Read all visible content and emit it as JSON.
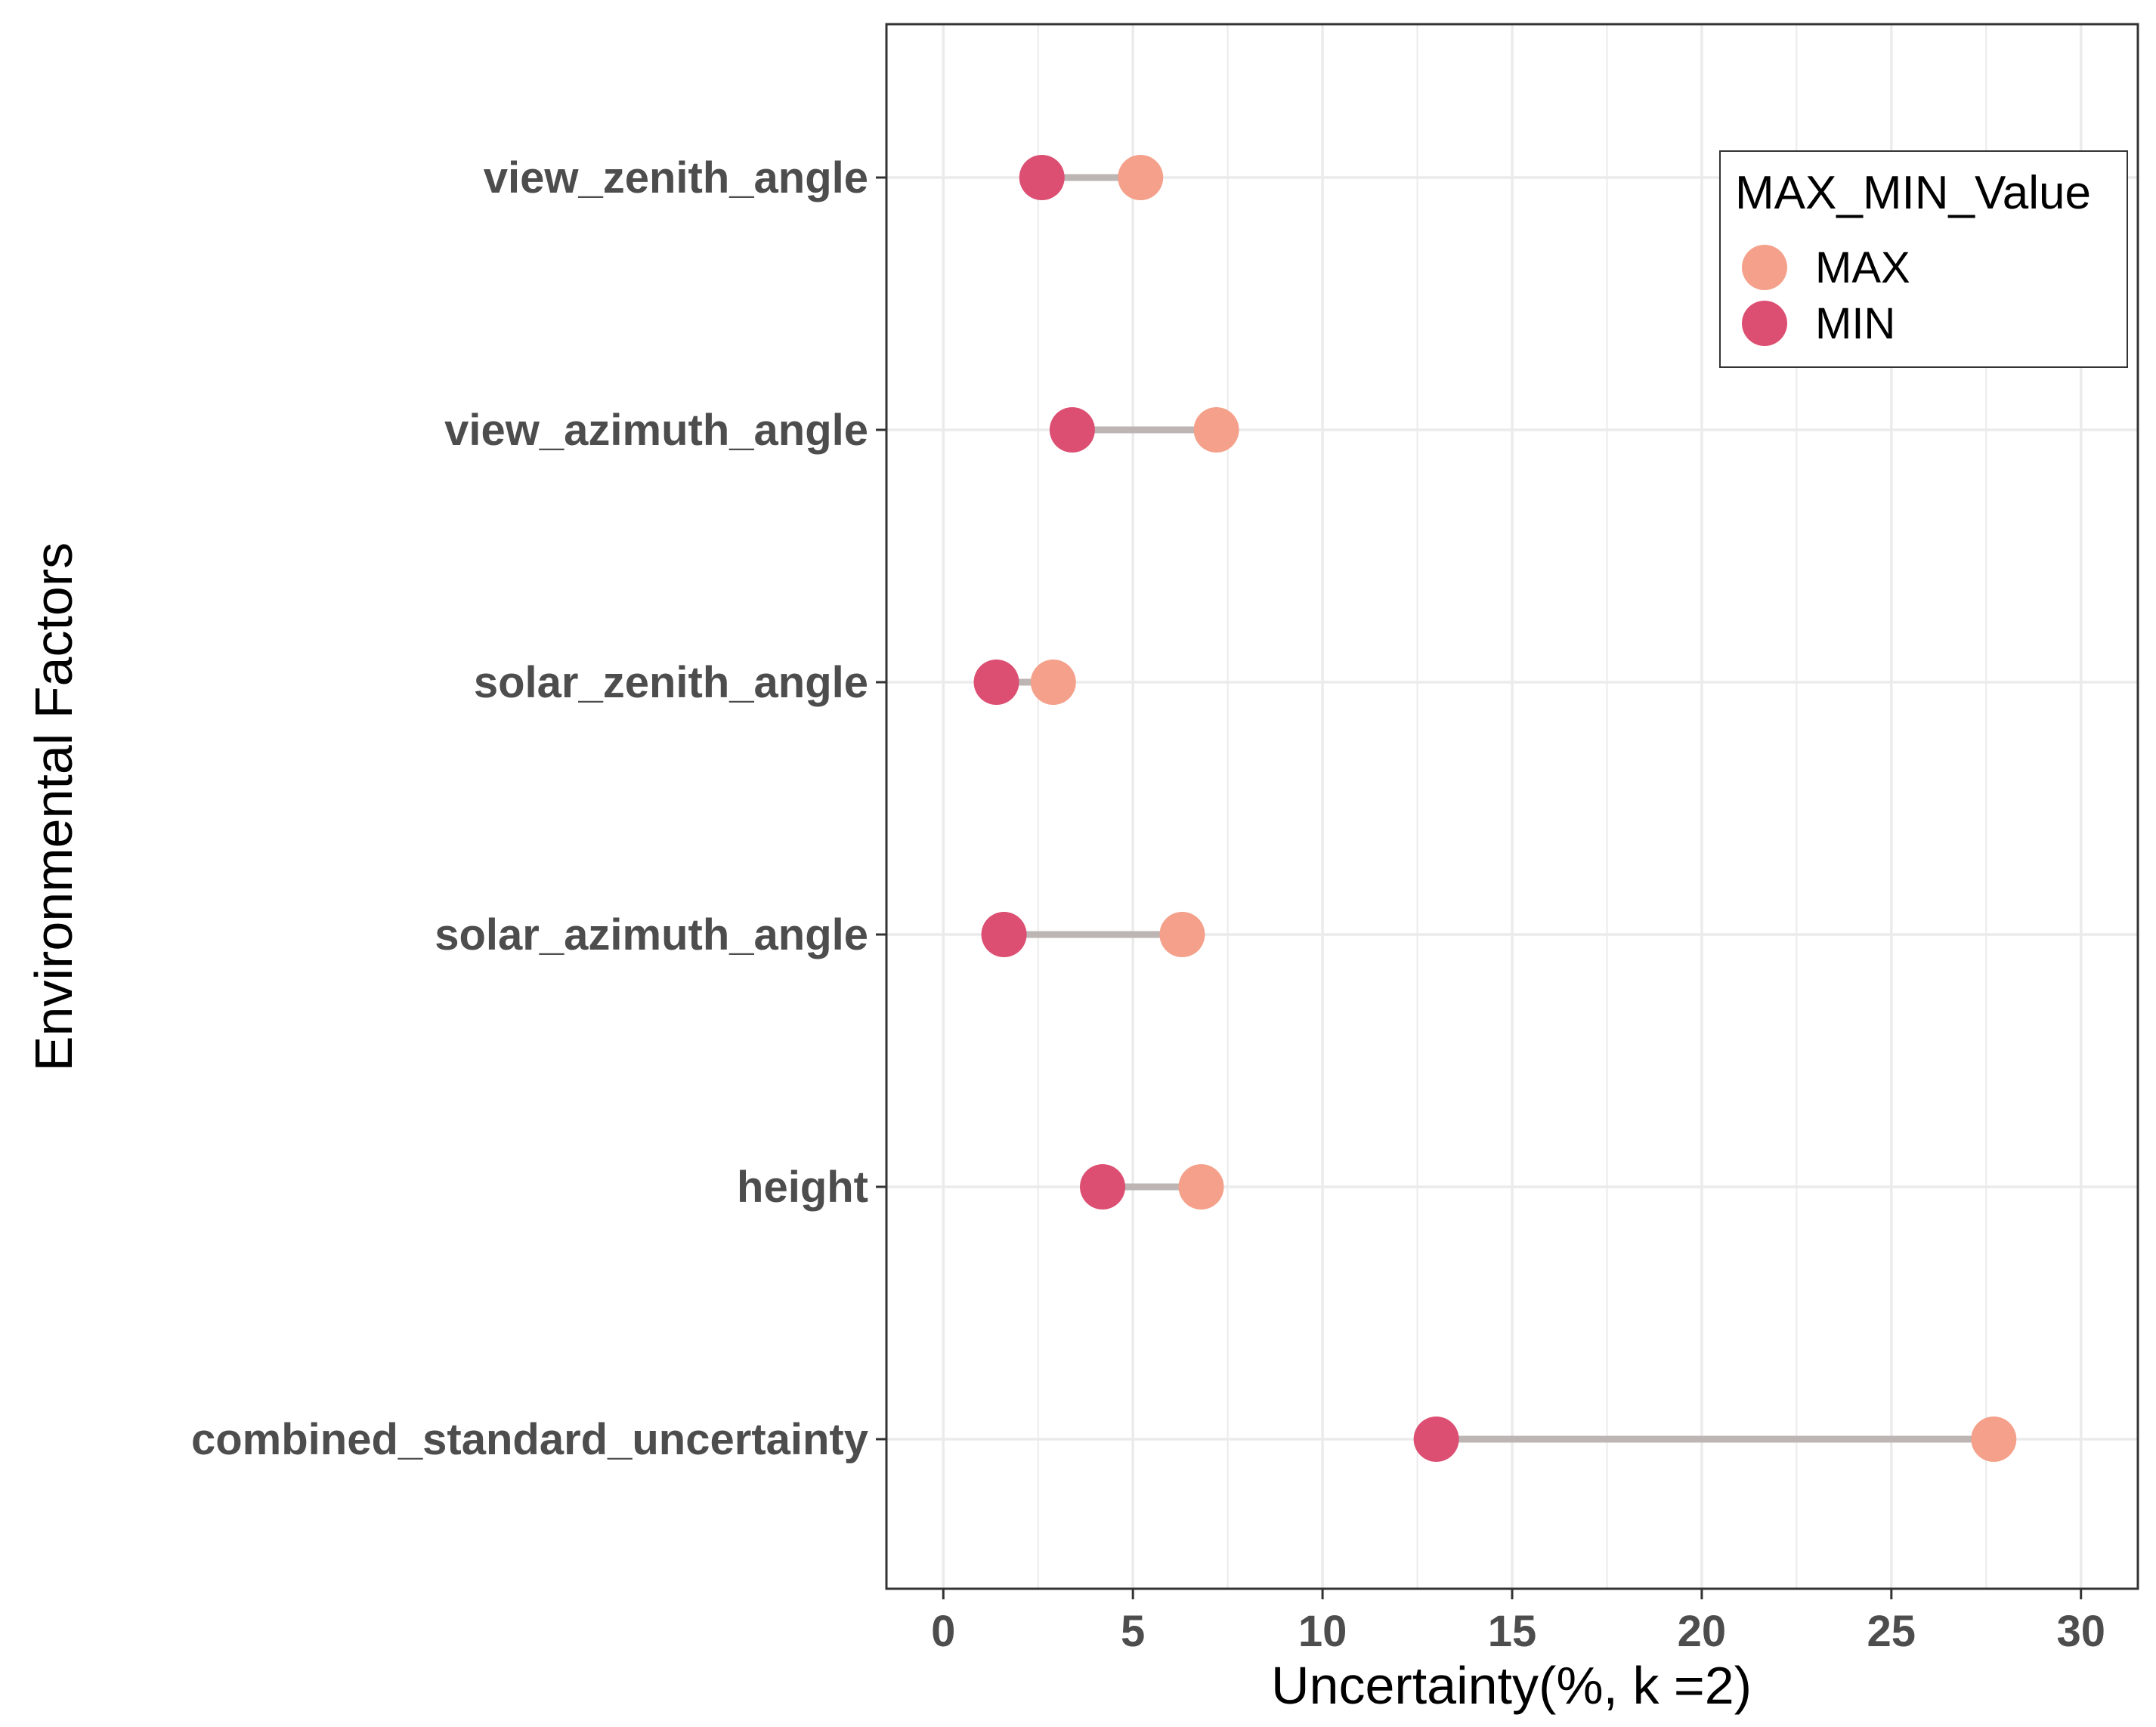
{
  "chart_data": {
    "type": "dumbbell",
    "title": "",
    "xlabel": "Uncertainty(%, k =2)",
    "ylabel": "Environmental Factors",
    "xlim": [
      -1.5,
      31.5
    ],
    "xticks": [
      0,
      5,
      10,
      15,
      20,
      25,
      30
    ],
    "categories": [
      "view_zenith_angle",
      "view_azimuth_angle",
      "solar_zenith_angle",
      "solar_azimuth_angle",
      "height",
      "combined_standard_uncertainty"
    ],
    "series": [
      {
        "name": "MAX",
        "values": [
          5.2,
          7.2,
          2.9,
          6.3,
          6.8,
          27.7
        ]
      },
      {
        "name": "MIN",
        "values": [
          2.6,
          3.4,
          1.4,
          1.6,
          4.2,
          13.0
        ]
      }
    ],
    "legend": {
      "title": "MAX_MIN_Value",
      "position": "top-right",
      "entries": [
        "MAX",
        "MIN"
      ]
    },
    "grid": true,
    "colors": {
      "MAX": "#f4a08a",
      "MIN": "#dc4f72",
      "segment": "#bdb4b4",
      "grid": "#ebebeb",
      "panel_border": "#333333"
    }
  }
}
